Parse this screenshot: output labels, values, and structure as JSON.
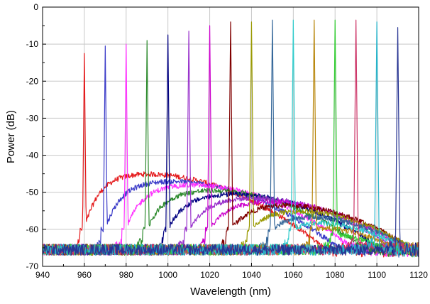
{
  "chart_data": {
    "type": "line",
    "title": "",
    "xlabel": "Wavelength (nm)",
    "ylabel": "Power (dB)",
    "xlim": [
      940,
      1120
    ],
    "ylim": [
      -70,
      0
    ],
    "grid": true,
    "x_ticks": [
      940,
      960,
      980,
      1000,
      1020,
      1040,
      1060,
      1080,
      1100,
      1120
    ],
    "y_ticks": [
      0,
      -10,
      -20,
      -30,
      -40,
      -50,
      -60,
      -70
    ],
    "x_tick_labels": [
      "940",
      "960",
      "980",
      "1000",
      "1020",
      "1040",
      "1060",
      "1080",
      "1100",
      "1120"
    ],
    "y_tick_labels": [
      "0",
      "-10",
      "-20",
      "-30",
      "-40",
      "-50",
      "-60",
      "-70"
    ],
    "series": [
      {
        "color": "#e41a1c",
        "peak_wavelength": 960,
        "peak_power": -12.5,
        "plateau_power": -45,
        "plateau_center": 988
      },
      {
        "color": "#3b3bc8",
        "peak_wavelength": 970,
        "peak_power": -10.5,
        "plateau_power": -47,
        "plateau_center": 1000
      },
      {
        "color": "#ff33ff",
        "peak_wavelength": 980,
        "peak_power": -10,
        "plateau_power": -48,
        "plateau_center": 1010
      },
      {
        "color": "#2e8b2e",
        "peak_wavelength": 990,
        "peak_power": -9,
        "plateau_power": -49.5,
        "plateau_center": 1020
      },
      {
        "color": "#000080",
        "peak_wavelength": 1000,
        "peak_power": -7.5,
        "plateau_power": -50.5,
        "plateau_center": 1030
      },
      {
        "color": "#9933cc",
        "peak_wavelength": 1010,
        "peak_power": -6.5,
        "plateau_power": -51.5,
        "plateau_center": 1040
      },
      {
        "color": "#cc00cc",
        "peak_wavelength": 1020,
        "peak_power": -5,
        "plateau_power": -52.5,
        "plateau_center": 1048
      },
      {
        "color": "#800000",
        "peak_wavelength": 1030,
        "peak_power": -4,
        "plateau_power": -53.5,
        "plateau_center": 1055
      },
      {
        "color": "#999900",
        "peak_wavelength": 1040,
        "peak_power": -4,
        "plateau_power": -55,
        "plateau_center": 1060
      },
      {
        "color": "#336699",
        "peak_wavelength": 1050,
        "peak_power": -3.5,
        "plateau_power": -56.5,
        "plateau_center": 1064
      },
      {
        "color": "#33cccc",
        "peak_wavelength": 1060,
        "peak_power": -3.5,
        "plateau_power": -58,
        "plateau_center": 1067
      },
      {
        "color": "#b8860b",
        "peak_wavelength": 1070,
        "peak_power": -3.5,
        "plateau_power": -59.5,
        "plateau_center": 1069
      },
      {
        "color": "#33cc33",
        "peak_wavelength": 1080,
        "peak_power": -3.5,
        "plateau_power": -61,
        "plateau_center": 1070
      },
      {
        "color": "#cc3366",
        "peak_wavelength": 1090,
        "peak_power": -3.5,
        "plateau_power": -62,
        "plateau_center": 1071
      },
      {
        "color": "#26b3c9",
        "peak_wavelength": 1100,
        "peak_power": -4,
        "plateau_power": -62.5,
        "plateau_center": 1072
      },
      {
        "color": "#283593",
        "peak_wavelength": 1110,
        "peak_power": -5.5,
        "plateau_power": -63,
        "plateau_center": 1073
      }
    ]
  }
}
